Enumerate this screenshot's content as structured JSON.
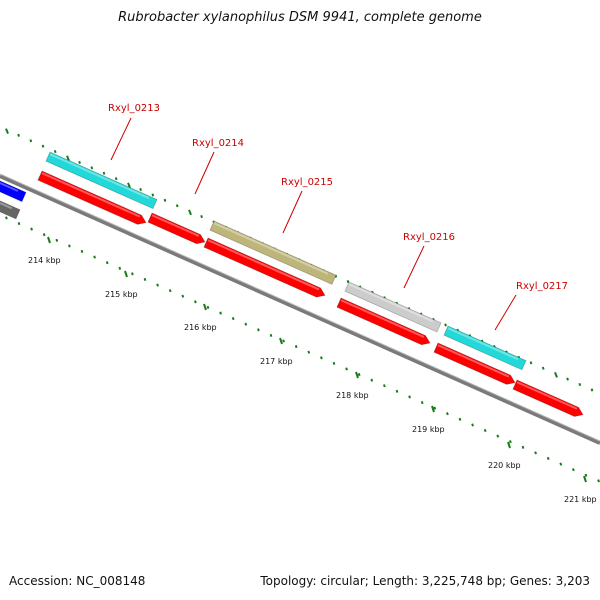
{
  "title": "Rubrobacter xylanophilus DSM 9941, complete genome",
  "footer": {
    "accession": "Accession: NC_008148",
    "summary": "Topology: circular; Length: 3,225,748 bp; Genes: 3,203"
  },
  "colors": {
    "backbone": "#7a7a7a",
    "tick": "#1a7a1a",
    "label": "#cc0000",
    "forward_gene": "#ff0000",
    "cyan": "#22d8d8",
    "olive": "#bdb57a",
    "gray_gene": "#cccccc",
    "blue_gene": "#0000ff",
    "dark_gray_gene": "#666666"
  },
  "tick_labels": [
    "214 kbp",
    "215 kbp",
    "216 kbp",
    "217 kbp",
    "218 kbp",
    "219 kbp",
    "220 kbp",
    "221 kbp"
  ],
  "genes": [
    {
      "label": "Rxyl_0213"
    },
    {
      "label": "Rxyl_0214"
    },
    {
      "label": "Rxyl_0215"
    },
    {
      "label": "Rxyl_0216"
    },
    {
      "label": "Rxyl_0217"
    }
  ]
}
